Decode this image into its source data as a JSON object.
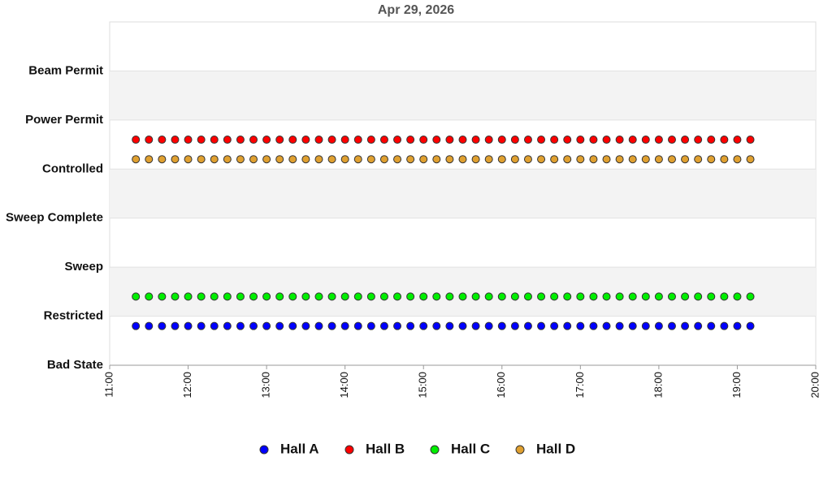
{
  "chart_data": {
    "type": "scatter",
    "title": "Apr 29, 2026",
    "x": [
      680,
      690,
      700,
      710,
      720,
      730,
      740,
      750,
      760,
      770,
      780,
      790,
      800,
      810,
      820,
      830,
      840,
      850,
      860,
      870,
      880,
      890,
      900,
      910,
      920,
      930,
      940,
      950,
      960,
      970,
      980,
      990,
      1000,
      1010,
      1020,
      1030,
      1040,
      1050,
      1060,
      1070,
      1080,
      1090,
      1100,
      1110,
      1120,
      1130,
      1140,
      1150
    ],
    "series": [
      {
        "name": "Hall A",
        "color": "#0000ff",
        "values": [
          0.8,
          0.8,
          0.8,
          0.8,
          0.8,
          0.8,
          0.8,
          0.8,
          0.8,
          0.8,
          0.8,
          0.8,
          0.8,
          0.8,
          0.8,
          0.8,
          0.8,
          0.8,
          0.8,
          0.8,
          0.8,
          0.8,
          0.8,
          0.8,
          0.8,
          0.8,
          0.8,
          0.8,
          0.8,
          0.8,
          0.8,
          0.8,
          0.8,
          0.8,
          0.8,
          0.8,
          0.8,
          0.8,
          0.8,
          0.8,
          0.8,
          0.8,
          0.8,
          0.8,
          0.8,
          0.8,
          0.8,
          0.8
        ]
      },
      {
        "name": "Hall B",
        "color": "#ff0000",
        "values": [
          4.6,
          4.6,
          4.6,
          4.6,
          4.6,
          4.6,
          4.6,
          4.6,
          4.6,
          4.6,
          4.6,
          4.6,
          4.6,
          4.6,
          4.6,
          4.6,
          4.6,
          4.6,
          4.6,
          4.6,
          4.6,
          4.6,
          4.6,
          4.6,
          4.6,
          4.6,
          4.6,
          4.6,
          4.6,
          4.6,
          4.6,
          4.6,
          4.6,
          4.6,
          4.6,
          4.6,
          4.6,
          4.6,
          4.6,
          4.6,
          4.6,
          4.6,
          4.6,
          4.6,
          4.6,
          4.6,
          4.6,
          4.6
        ]
      },
      {
        "name": "Hall C",
        "color": "#00ee00",
        "values": [
          1.4,
          1.4,
          1.4,
          1.4,
          1.4,
          1.4,
          1.4,
          1.4,
          1.4,
          1.4,
          1.4,
          1.4,
          1.4,
          1.4,
          1.4,
          1.4,
          1.4,
          1.4,
          1.4,
          1.4,
          1.4,
          1.4,
          1.4,
          1.4,
          1.4,
          1.4,
          1.4,
          1.4,
          1.4,
          1.4,
          1.4,
          1.4,
          1.4,
          1.4,
          1.4,
          1.4,
          1.4,
          1.4,
          1.4,
          1.4,
          1.4,
          1.4,
          1.4,
          1.4,
          1.4,
          1.4,
          1.4,
          1.4
        ]
      },
      {
        "name": "Hall D",
        "color": "#e0a030",
        "values": [
          4.2,
          4.2,
          4.2,
          4.2,
          4.2,
          4.2,
          4.2,
          4.2,
          4.2,
          4.2,
          4.2,
          4.2,
          4.2,
          4.2,
          4.2,
          4.2,
          4.2,
          4.2,
          4.2,
          4.2,
          4.2,
          4.2,
          4.2,
          4.2,
          4.2,
          4.2,
          4.2,
          4.2,
          4.2,
          4.2,
          4.2,
          4.2,
          4.2,
          4.2,
          4.2,
          4.2,
          4.2,
          4.2,
          4.2,
          4.2,
          4.2,
          4.2,
          4.2,
          4.2,
          4.2,
          4.2,
          4.2,
          4.2
        ]
      }
    ],
    "xlim": [
      660,
      1200
    ],
    "xticks": [
      {
        "value": 660,
        "label": "11:00"
      },
      {
        "value": 720,
        "label": "12:00"
      },
      {
        "value": 780,
        "label": "13:00"
      },
      {
        "value": 840,
        "label": "14:00"
      },
      {
        "value": 900,
        "label": "15:00"
      },
      {
        "value": 960,
        "label": "16:00"
      },
      {
        "value": 1020,
        "label": "17:00"
      },
      {
        "value": 1080,
        "label": "18:00"
      },
      {
        "value": 1140,
        "label": "19:00"
      },
      {
        "value": 1200,
        "label": "20:00"
      }
    ],
    "ylim": [
      0,
      7
    ],
    "yticks": [
      {
        "value": 0,
        "label": "Bad State"
      },
      {
        "value": 1,
        "label": "Restricted"
      },
      {
        "value": 2,
        "label": "Sweep"
      },
      {
        "value": 3,
        "label": "Sweep Complete"
      },
      {
        "value": 4,
        "label": "Controlled"
      },
      {
        "value": 5,
        "label": "Power Permit"
      },
      {
        "value": 6,
        "label": "Beam Permit"
      }
    ],
    "grid": true,
    "legend": "bottom"
  }
}
